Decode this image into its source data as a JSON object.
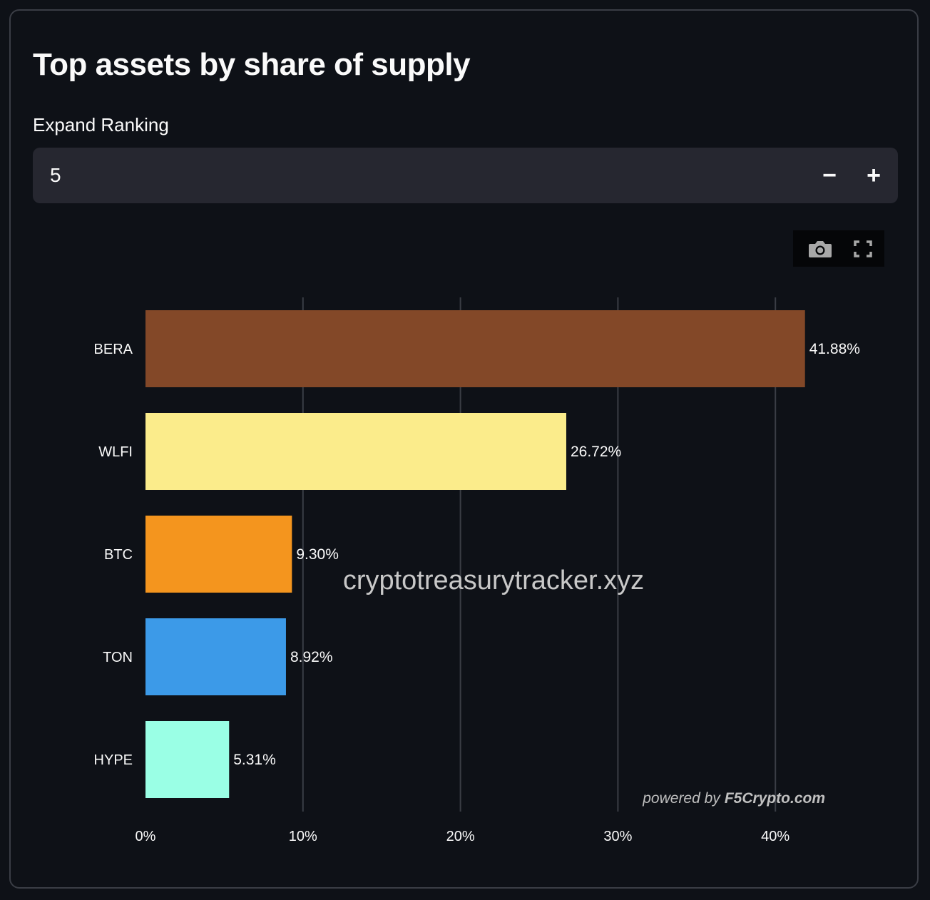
{
  "title": "Top assets by share of supply",
  "ranking": {
    "label": "Expand Ranking",
    "value": "5",
    "decrement_label": "−",
    "increment_label": "+"
  },
  "modebar": {
    "icons": [
      "camera-icon",
      "fullscreen-icon"
    ]
  },
  "chart_data": {
    "type": "bar",
    "orientation": "horizontal",
    "title": "",
    "xlabel": "",
    "ylabel": "",
    "categories": [
      "BERA",
      "WLFI",
      "BTC",
      "TON",
      "HYPE"
    ],
    "values": [
      41.88,
      26.72,
      9.3,
      8.92,
      5.31
    ],
    "value_labels": [
      "41.88%",
      "26.72%",
      "9.30%",
      "8.92%",
      "5.31%"
    ],
    "colors": [
      "#834828",
      "#fbec8b",
      "#f4951e",
      "#3c9ae8",
      "#9affe5"
    ],
    "xlim": [
      0,
      45
    ],
    "xticks": [
      0,
      10,
      20,
      30,
      40
    ],
    "xtick_labels": [
      "0%",
      "10%",
      "20%",
      "30%",
      "40%"
    ],
    "grid": true,
    "watermark": "cryptotreasurytracker.xyz",
    "credit_prefix": "powered by",
    "credit_brand": "F5Crypto.com"
  }
}
